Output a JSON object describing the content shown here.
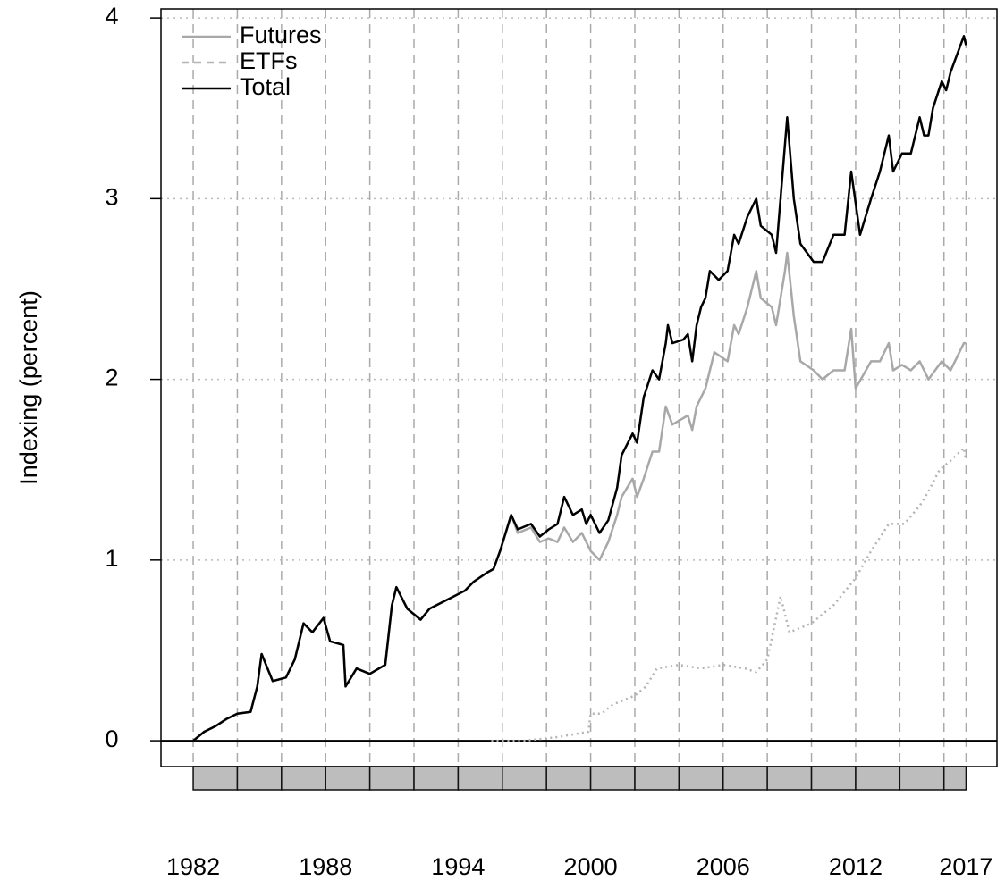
{
  "chart_data": {
    "type": "line",
    "y_label": "Indexing (percent)",
    "xlim": [
      1980.54,
      2018.4
    ],
    "ylim": [
      -0.143,
      4.05
    ],
    "xticks": [
      1982,
      1988,
      1994,
      2000,
      2006,
      2012,
      2017
    ],
    "yticks": [
      0,
      1,
      2,
      3,
      4
    ],
    "xgrid": [
      1982,
      1984,
      1986,
      1988,
      1990,
      1992,
      1994,
      1996,
      1998,
      2000,
      2002,
      2004,
      2006,
      2008,
      2010,
      2012,
      2014,
      2016,
      2017
    ],
    "hline": 0,
    "grid": true,
    "legend": "top-left",
    "series": [
      {
        "name": "Futures",
        "color": "#a8a8a8",
        "dash": "none",
        "x": [
          1982.0,
          1982.5,
          1983,
          1983.5,
          1984,
          1984.6,
          1984.9,
          1985.1,
          1985.6,
          1986.2,
          1986.6,
          1987.0,
          1987.4,
          1987.9,
          1988.2,
          1988.8,
          1988.9,
          1989.4,
          1990,
          1990.7,
          1991.0,
          1991.2,
          1991.7,
          1992.3,
          1992.7,
          1993.5,
          1994.3,
          1994.7,
          1995.3,
          1995.6,
          1995.9,
          1996.4,
          1996.7,
          1997.3,
          1997.7,
          1998.1,
          1998.5,
          1998.8,
          1999.2,
          1999.6,
          2000.0,
          2000.4,
          2000.8,
          2001.2,
          2001.4,
          2001.9,
          2002.1,
          2002.4,
          2002.8,
          2003.1,
          2003.4,
          2003.7,
          2004.4,
          2004.6,
          2004.8,
          2005.2,
          2005.6,
          2006.2,
          2006.5,
          2006.7,
          2007.1,
          2007.5,
          2007.7,
          2008.2,
          2008.4,
          2008.8,
          2008.9,
          2009.2,
          2009.5,
          2010.1,
          2010.5,
          2011.0,
          2011.5,
          2011.8,
          2012.0,
          2012.7,
          2013.1,
          2013.5,
          2013.7,
          2014.1,
          2014.5,
          2014.9,
          2015.3,
          2015.9,
          2016.3,
          2016.9,
          2017.0
        ],
        "values": [
          0,
          0.05,
          0.08,
          0.12,
          0.15,
          0.16,
          0.3,
          0.48,
          0.33,
          0.35,
          0.45,
          0.65,
          0.6,
          0.68,
          0.55,
          0.53,
          0.3,
          0.4,
          0.37,
          0.42,
          0.75,
          0.85,
          0.73,
          0.67,
          0.73,
          0.78,
          0.83,
          0.88,
          0.93,
          0.95,
          1.05,
          1.25,
          1.15,
          1.18,
          1.1,
          1.12,
          1.1,
          1.18,
          1.1,
          1.15,
          1.05,
          1.0,
          1.1,
          1.25,
          1.35,
          1.45,
          1.35,
          1.45,
          1.6,
          1.6,
          1.85,
          1.75,
          1.8,
          1.72,
          1.85,
          1.95,
          2.15,
          2.1,
          2.3,
          2.25,
          2.4,
          2.6,
          2.45,
          2.4,
          2.3,
          2.6,
          2.7,
          2.35,
          2.1,
          2.05,
          2.0,
          2.05,
          2.05,
          2.28,
          1.95,
          2.1,
          2.1,
          2.2,
          2.05,
          2.08,
          2.05,
          2.1,
          2.0,
          2.1,
          2.05,
          2.2,
          2.2
        ]
      },
      {
        "name": "ETFs",
        "color": "#b4b4b4",
        "dash": "2 4",
        "x": [
          1995.5,
          1997.0,
          1998.5,
          1999.9,
          2000.0,
          2000.5,
          2001.0,
          2002.0,
          2002.5,
          2003.0,
          2004.0,
          2005.0,
          2006.0,
          2007.0,
          2007.5,
          2008.0,
          2008.6,
          2009.0,
          2010.0,
          2011.0,
          2012.0,
          2012.7,
          2013.5,
          2014.2,
          2014.9,
          2015.3,
          2015.8,
          2016.3,
          2016.9,
          2017.0
        ],
        "values": [
          0,
          0,
          0.02,
          0.05,
          0.15,
          0.15,
          0.2,
          0.25,
          0.3,
          0.4,
          0.42,
          0.4,
          0.42,
          0.4,
          0.38,
          0.45,
          0.8,
          0.6,
          0.65,
          0.75,
          0.9,
          1.05,
          1.2,
          1.2,
          1.3,
          1.38,
          1.5,
          1.55,
          1.62,
          1.55
        ]
      },
      {
        "name": "Total",
        "color": "#000000",
        "dash": "none",
        "x": [
          1982.0,
          1982.5,
          1983,
          1983.5,
          1984,
          1984.6,
          1984.9,
          1985.1,
          1985.6,
          1986.2,
          1986.6,
          1987.0,
          1987.4,
          1987.9,
          1988.2,
          1988.8,
          1988.9,
          1989.4,
          1990,
          1990.7,
          1991.0,
          1991.2,
          1991.7,
          1992.3,
          1992.7,
          1993.5,
          1994.3,
          1994.7,
          1995.3,
          1995.6,
          1995.9,
          1996.4,
          1996.7,
          1997.3,
          1997.7,
          1998.1,
          1998.5,
          1998.8,
          1999.2,
          1999.6,
          1999.8,
          2000.0,
          2000.4,
          2000.8,
          2001.2,
          2001.4,
          2001.9,
          2002.1,
          2002.4,
          2002.8,
          2003.1,
          2003.4,
          2003.5,
          2003.7,
          2004.2,
          2004.4,
          2004.6,
          2004.8,
          2005.0,
          2005.2,
          2005.4,
          2005.8,
          2006.2,
          2006.5,
          2006.7,
          2007.1,
          2007.5,
          2007.7,
          2008.2,
          2008.4,
          2008.8,
          2008.9,
          2009.2,
          2009.5,
          2010.1,
          2010.5,
          2011.0,
          2011.5,
          2011.8,
          2012.2,
          2012.7,
          2013.1,
          2013.5,
          2013.7,
          2014.1,
          2014.5,
          2014.9,
          2015.1,
          2015.3,
          2015.5,
          2015.9,
          2016.1,
          2016.3,
          2016.9,
          2017.0
        ],
        "values": [
          0,
          0.05,
          0.08,
          0.12,
          0.15,
          0.16,
          0.3,
          0.48,
          0.33,
          0.35,
          0.45,
          0.65,
          0.6,
          0.68,
          0.55,
          0.53,
          0.3,
          0.4,
          0.37,
          0.42,
          0.75,
          0.85,
          0.73,
          0.67,
          0.73,
          0.78,
          0.83,
          0.88,
          0.93,
          0.95,
          1.05,
          1.25,
          1.17,
          1.2,
          1.13,
          1.17,
          1.2,
          1.35,
          1.25,
          1.28,
          1.2,
          1.25,
          1.15,
          1.22,
          1.4,
          1.58,
          1.7,
          1.65,
          1.9,
          2.05,
          2.0,
          2.2,
          2.3,
          2.2,
          2.22,
          2.25,
          2.1,
          2.3,
          2.4,
          2.45,
          2.6,
          2.55,
          2.6,
          2.8,
          2.75,
          2.9,
          3.0,
          2.85,
          2.8,
          2.7,
          3.3,
          3.45,
          3.0,
          2.75,
          2.65,
          2.65,
          2.8,
          2.8,
          3.15,
          2.8,
          3.0,
          3.15,
          3.35,
          3.15,
          3.25,
          3.25,
          3.45,
          3.35,
          3.35,
          3.5,
          3.65,
          3.6,
          3.7,
          3.9,
          3.85
        ]
      }
    ]
  }
}
